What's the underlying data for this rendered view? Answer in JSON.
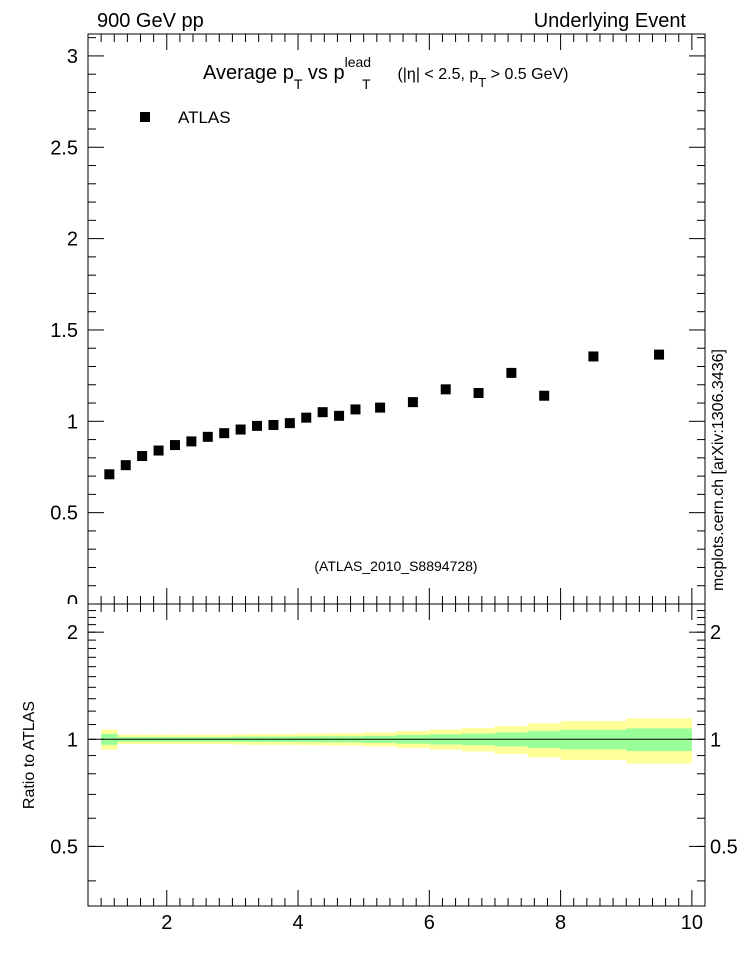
{
  "header": {
    "left": "900 GeV pp",
    "right": "Underlying Event",
    "side": "mcplots.cern.ch [arXiv:1306.3436]"
  },
  "chart_data": [
    {
      "type": "scatter",
      "title_parts": {
        "lead": "Average p",
        "sub1": "T",
        "mid": " vs p",
        "sup": "lead",
        "sub2": "T",
        "tail1": " (|η| < 2.5, p",
        "sub3": "T",
        "tail2": " > 0.5 GeV)"
      },
      "watermark": "(ATLAS_2010_S8894728)",
      "legend": {
        "position": "top-left",
        "entries": [
          "ATLAS"
        ]
      },
      "xlim": [
        0.8,
        10.2
      ],
      "ylim": [
        0,
        3.12
      ],
      "y_ticks": [
        {
          "v": 0.5,
          "label": "0.5"
        },
        {
          "v": 1,
          "label": "1"
        },
        {
          "v": 1.5,
          "label": "1.5"
        },
        {
          "v": 2,
          "label": "2"
        },
        {
          "v": 2.5,
          "label": "2.5"
        },
        {
          "v": 3,
          "label": "3"
        }
      ],
      "series": [
        {
          "name": "ATLAS",
          "marker": "square",
          "color": "#000000",
          "x": [
            1.125,
            1.375,
            1.625,
            1.875,
            2.125,
            2.375,
            2.625,
            2.875,
            3.125,
            3.375,
            3.625,
            3.875,
            4.125,
            4.375,
            4.625,
            4.875,
            5.25,
            5.75,
            6.25,
            6.75,
            7.25,
            7.75,
            8.5,
            9.5
          ],
          "y": [
            0.71,
            0.76,
            0.81,
            0.84,
            0.87,
            0.89,
            0.915,
            0.935,
            0.955,
            0.975,
            0.98,
            0.99,
            1.02,
            1.05,
            1.03,
            1.065,
            1.075,
            1.105,
            1.175,
            1.155,
            1.265,
            1.14,
            1.355,
            1.365
          ]
        }
      ]
    },
    {
      "type": "area",
      "ylabel": "Ratio to ATLAS",
      "xlim": [
        0.8,
        10.2
      ],
      "ylim": [
        0.34,
        2.4
      ],
      "x_ticks": [
        {
          "v": 2,
          "label": "2"
        },
        {
          "v": 4,
          "label": "4"
        },
        {
          "v": 6,
          "label": "6"
        },
        {
          "v": 8,
          "label": "8"
        },
        {
          "v": 10,
          "label": "10"
        }
      ],
      "y_ticks": [
        {
          "v": 0.5,
          "label": "0.5"
        },
        {
          "v": 1,
          "label": "1"
        },
        {
          "v": 2,
          "label": "2"
        }
      ],
      "band_colors": {
        "outer": "#ffff99",
        "inner": "#99ff99",
        "line": "#000000"
      },
      "bin_edges": [
        1.0,
        1.25,
        1.5,
        1.75,
        2.0,
        2.25,
        2.5,
        2.75,
        3.0,
        3.25,
        3.5,
        3.75,
        4.0,
        4.25,
        4.5,
        4.75,
        5.0,
        5.5,
        6.0,
        6.5,
        7.0,
        7.5,
        8.0,
        9.0,
        10.0
      ],
      "outer_half": [
        0.065,
        0.03,
        0.03,
        0.03,
        0.03,
        0.03,
        0.03,
        0.03,
        0.033,
        0.035,
        0.035,
        0.035,
        0.037,
        0.038,
        0.04,
        0.04,
        0.045,
        0.055,
        0.065,
        0.075,
        0.09,
        0.11,
        0.125,
        0.145
      ],
      "inner_half": [
        0.035,
        0.015,
        0.015,
        0.015,
        0.015,
        0.015,
        0.015,
        0.015,
        0.017,
        0.018,
        0.018,
        0.018,
        0.019,
        0.02,
        0.02,
        0.02,
        0.023,
        0.028,
        0.033,
        0.038,
        0.045,
        0.055,
        0.063,
        0.073
      ]
    }
  ]
}
